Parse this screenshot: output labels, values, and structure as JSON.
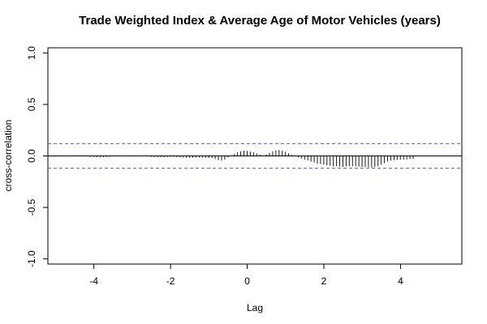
{
  "chart_data": {
    "type": "bar",
    "title": "Trade Weighted Index & Average Age of Motor Vehicles (years)",
    "xlabel": "Lag",
    "ylabel": "cross-correlation",
    "xlim": [
      -5.2,
      5.6
    ],
    "ylim": [
      -1.05,
      1.05
    ],
    "x_ticks": [
      -4,
      -2,
      0,
      2,
      4
    ],
    "x_tick_labels": [
      "-4",
      "-2",
      "0",
      "2",
      "4"
    ],
    "y_ticks": [
      -1.0,
      -0.5,
      0.0,
      0.5,
      1.0
    ],
    "y_tick_labels": [
      "-1.0",
      "-0.5",
      "0.0",
      "0.5",
      "1.0"
    ],
    "confidence_bound": 0.12,
    "lag_start": -5.0,
    "lag_step": 0.0833,
    "values": [
      -0.005,
      -0.005,
      -0.004,
      -0.003,
      -0.002,
      0.002,
      0.004,
      0.006,
      0.005,
      0.002,
      -0.003,
      -0.007,
      -0.01,
      -0.012,
      -0.013,
      -0.012,
      -0.01,
      -0.008,
      -0.006,
      -0.005,
      -0.004,
      -0.003,
      -0.004,
      -0.005,
      -0.006,
      -0.005,
      -0.004,
      -0.003,
      -0.004,
      -0.006,
      -0.008,
      -0.01,
      -0.012,
      -0.013,
      -0.012,
      -0.01,
      -0.009,
      -0.01,
      -0.012,
      -0.014,
      -0.016,
      -0.018,
      -0.018,
      -0.017,
      -0.016,
      -0.015,
      -0.016,
      -0.018,
      -0.02,
      -0.022,
      -0.03,
      -0.04,
      -0.045,
      -0.035,
      -0.015,
      0.005,
      0.02,
      0.035,
      0.045,
      0.05,
      0.048,
      0.042,
      0.035,
      0.025,
      0.012,
      0.005,
      0.015,
      0.03,
      0.045,
      0.055,
      0.058,
      0.052,
      0.04,
      0.025,
      0.01,
      -0.005,
      -0.015,
      -0.025,
      -0.035,
      -0.045,
      -0.055,
      -0.065,
      -0.075,
      -0.08,
      -0.085,
      -0.09,
      -0.095,
      -0.1,
      -0.1,
      -0.102,
      -0.105,
      -0.102,
      -0.1,
      -0.098,
      -0.1,
      -0.103,
      -0.106,
      -0.108,
      -0.11,
      -0.112,
      -0.108,
      -0.1,
      -0.085,
      -0.07,
      -0.055,
      -0.045,
      -0.04,
      -0.038,
      -0.036,
      -0.035,
      -0.033,
      -0.03,
      -0.028
    ]
  }
}
